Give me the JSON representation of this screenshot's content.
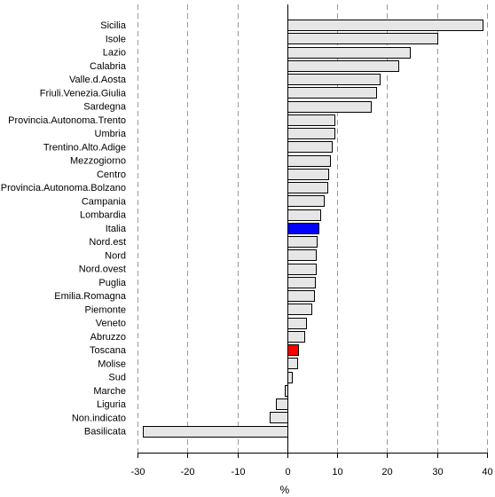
{
  "chart_data": {
    "type": "bar",
    "orientation": "horizontal",
    "xlabel": "%",
    "ylabel": "",
    "xlim": [
      -30,
      40
    ],
    "xticks": [
      -30,
      -20,
      -10,
      0,
      10,
      20,
      30,
      40
    ],
    "grid": "vertical-dashed",
    "default_color": "#e6e6e6",
    "categories": [
      "Sicilia",
      "Isole",
      "Lazio",
      "Calabria",
      "Valle.d.Aosta",
      "Friuli.Venezia.Giulia",
      "Sardegna",
      "Provincia.Autonoma.Trento",
      "Umbria",
      "Trentino.Alto.Adige",
      "Mezzogiorno",
      "Centro",
      "Provincia.Autonoma.Bolzano",
      "Campania",
      "Lombardia",
      "Italia",
      "Nord.est",
      "Nord",
      "Nord.ovest",
      "Puglia",
      "Emilia.Romagna",
      "Piemonte",
      "Veneto",
      "Abruzzo",
      "Toscana",
      "Molise",
      "Sud",
      "Marche",
      "Liguria",
      "Non.indicato",
      "Basilicata"
    ],
    "values": [
      39.0,
      30.0,
      24.5,
      22.2,
      18.5,
      17.8,
      16.7,
      9.5,
      9.5,
      8.8,
      8.5,
      8.2,
      8.0,
      7.2,
      6.5,
      6.2,
      5.9,
      5.7,
      5.7,
      5.5,
      5.3,
      4.8,
      3.8,
      3.3,
      2.1,
      2.0,
      0.8,
      -0.5,
      -2.3,
      -3.5,
      -29.0
    ],
    "highlight": {
      "Italia": "#0000ff",
      "Toscana": "#ff0000"
    }
  }
}
